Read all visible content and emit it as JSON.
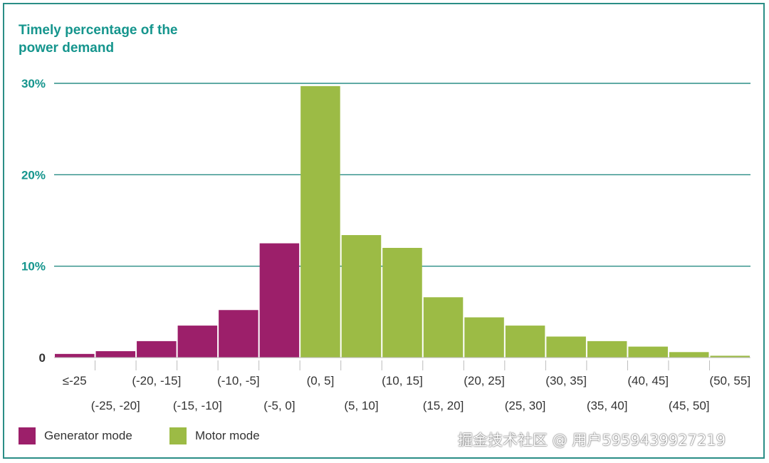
{
  "chart_data": {
    "type": "bar",
    "title": "Timely percentage of the power demand",
    "ylabel": "",
    "xlabel": "",
    "ylim": [
      0,
      30
    ],
    "yticks": [
      {
        "value": 0,
        "label": "0"
      },
      {
        "value": 10,
        "label": "10%"
      },
      {
        "value": 20,
        "label": "20%"
      },
      {
        "value": 30,
        "label": "30%"
      }
    ],
    "grid": true,
    "legend_position": "bottom-left",
    "categories": [
      "≤-25",
      "(-25, -20]",
      "(-20, -15]",
      "(-15, -10]",
      "(-10, -5]",
      "(-5, 0]",
      "(0, 5]",
      "(5, 10]",
      "(10, 15]",
      "(15, 20]",
      "(20, 25]",
      "(25, 30]",
      "(30, 35]",
      "(35, 40]",
      "(40, 45]",
      "(45, 50]",
      "(50, 55]"
    ],
    "series": [
      {
        "name": "Generator mode",
        "color": "#9c1f6a",
        "values": [
          0.4,
          0.7,
          1.8,
          3.5,
          5.2,
          12.5,
          null,
          null,
          null,
          null,
          null,
          null,
          null,
          null,
          null,
          null,
          null
        ]
      },
      {
        "name": "Motor mode",
        "color": "#9cbb45",
        "values": [
          null,
          null,
          null,
          null,
          null,
          null,
          29.7,
          13.4,
          12.0,
          6.6,
          4.4,
          3.5,
          2.3,
          1.8,
          1.2,
          0.6,
          0.2
        ]
      }
    ],
    "colors": {
      "grid": "#2a8d86",
      "title": "#15958d",
      "frame": "#2a8d86"
    }
  },
  "legend": {
    "items": [
      {
        "label": "Generator mode",
        "color": "#9c1f6a"
      },
      {
        "label": "Motor mode",
        "color": "#9cbb45"
      }
    ]
  },
  "watermark": "掘金技术社区 @ 用户5959439927219"
}
